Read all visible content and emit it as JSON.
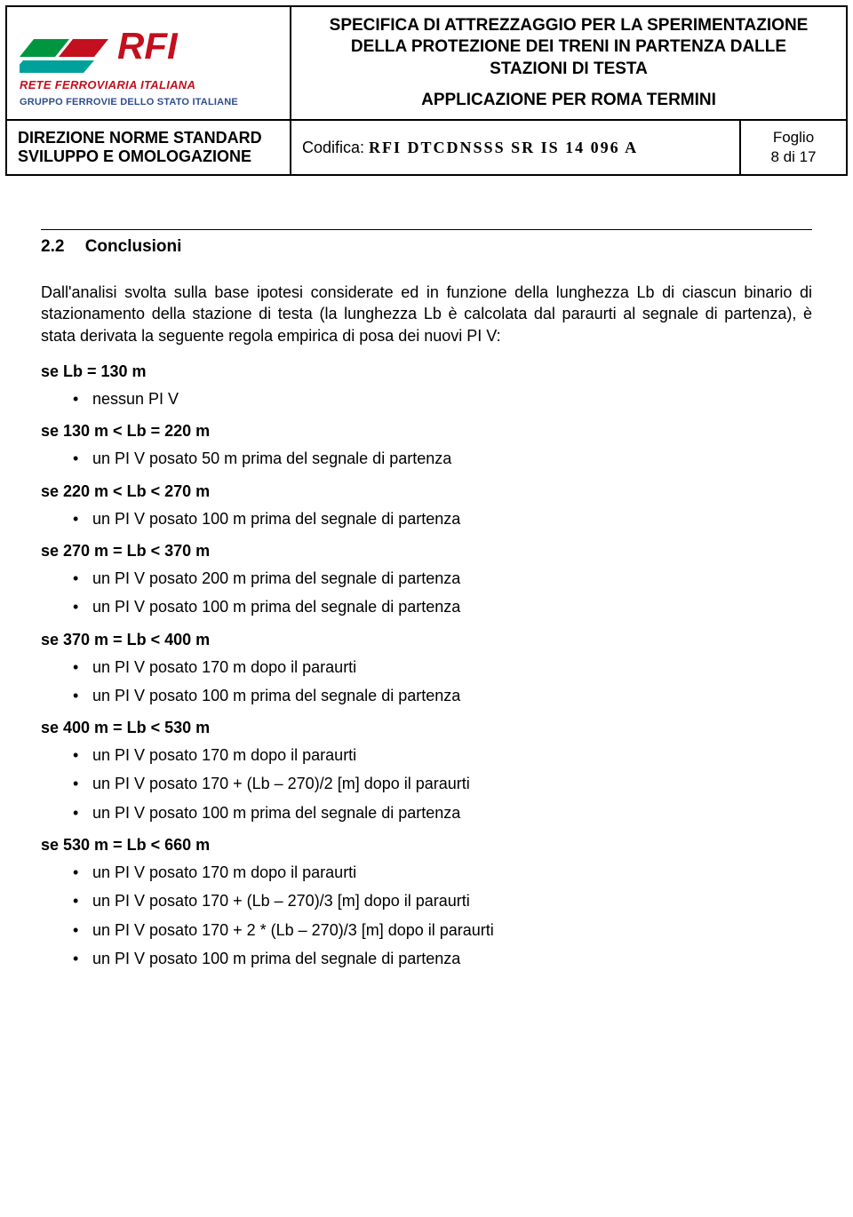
{
  "header": {
    "logo": {
      "brand_top": "RFI",
      "brand_mid": "RETE FERROVIARIA ITALIANA",
      "brand_bottom": "GRUPPO FERROVIE DELLO STATO ITALIANE",
      "colors": {
        "red": "#c40f1e",
        "green": "#009640",
        "teal": "#00a19a",
        "blue": "#2f4e8f"
      }
    },
    "title_line1": "SPECIFICA DI ATTREZZAGGIO PER LA SPERIMENTAZIONE",
    "title_line2": "DELLA PROTEZIONE DEI TRENI IN PARTENZA DALLE",
    "title_line3": "STAZIONI DI TESTA",
    "title_line4": "APPLICAZIONE PER ROMA TERMINI",
    "direzione_line1": "DIREZIONE NORME STANDARD",
    "direzione_line2": "SVILUPPO E OMOLOGAZIONE",
    "codifica_label": "Codifica: ",
    "codifica_code": "RFI  DTCDNSSS  SR  IS  14  096  A",
    "foglio_label": "Foglio",
    "foglio_value": "8 di 17"
  },
  "section": {
    "number": "2.2",
    "title": "Conclusioni",
    "intro": "Dall'analisi svolta sulla base ipotesi considerate ed in funzione della lunghezza Lb di ciascun binario di stazionamento della stazione di testa (la lunghezza Lb è calcolata dal paraurti al segnale di partenza), è stata derivata la seguente regola empirica di posa dei nuovi PI V:"
  },
  "rules": [
    {
      "heading": "se Lb = 130 m",
      "items": [
        "nessun PI V"
      ]
    },
    {
      "heading": "se 130 m < Lb = 220 m",
      "items": [
        "un PI V posato 50 m prima del segnale di partenza"
      ]
    },
    {
      "heading": "se 220 m < Lb < 270 m",
      "items": [
        "un PI V posato 100 m prima del segnale di partenza"
      ]
    },
    {
      "heading": "se 270 m = Lb < 370 m",
      "items": [
        "un PI V posato 200 m prima del segnale di partenza",
        "un PI V posato 100 m prima del segnale di partenza"
      ]
    },
    {
      "heading": "se 370 m = Lb < 400 m",
      "items": [
        "un PI V posato 170 m dopo il paraurti",
        "un PI V posato 100 m prima del segnale di partenza"
      ]
    },
    {
      "heading": "se 400 m = Lb < 530 m",
      "items": [
        "un PI V posato 170 m dopo il paraurti",
        "un PI V posato 170 + (Lb – 270)/2 [m] dopo il paraurti",
        "un PI V posato 100 m prima del segnale di partenza"
      ]
    },
    {
      "heading": "se 530 m = Lb < 660 m",
      "items": [
        "un PI V posato 170 m dopo il paraurti",
        "un PI V posato 170 + (Lb – 270)/3 [m] dopo il paraurti",
        "un PI V posato 170 + 2 * (Lb – 270)/3 [m] dopo il paraurti",
        "un PI V posato 100 m prima del segnale di partenza"
      ]
    }
  ]
}
